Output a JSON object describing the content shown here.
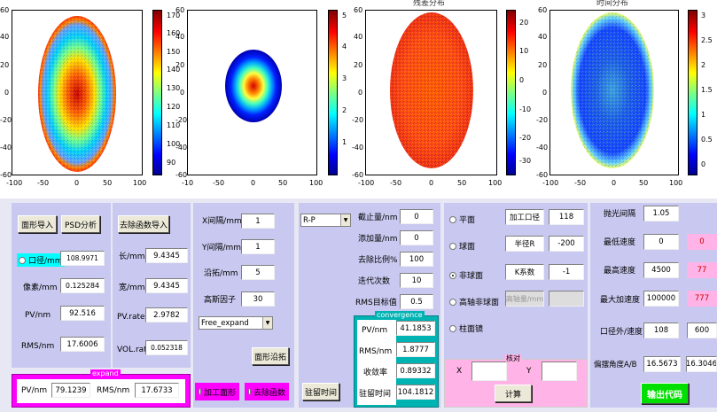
{
  "plots": {
    "titles": [
      "",
      "",
      "残差分布",
      "时间分布"
    ],
    "p1": {
      "yticks": [
        "60",
        "40",
        "20",
        "0",
        "-20",
        "-40",
        "-60"
      ],
      "xticks": [
        "-100",
        "-50",
        "0",
        "50",
        "100"
      ],
      "cbar": [
        "170",
        "160",
        "150",
        "140",
        "130",
        "120",
        "110",
        "100",
        "90"
      ]
    },
    "p2": {
      "yticks": [
        "60",
        "40",
        "20",
        "0",
        "-20",
        "-40",
        "-60"
      ],
      "xticks": [
        "-10",
        "-50",
        "0",
        "50",
        "100"
      ],
      "cbar": [
        "5",
        "4",
        "3",
        "2",
        "1"
      ]
    },
    "p3": {
      "yticks": [
        "60",
        "40",
        "20",
        "0",
        "-20",
        "-40",
        "-60"
      ],
      "xticks": [
        "-100",
        "-50",
        "0",
        "50",
        "100"
      ],
      "cbar": [
        "20",
        "10",
        "0",
        "-10",
        "-20",
        "-30"
      ]
    },
    "p4": {
      "yticks": [
        "60",
        "40",
        "20",
        "0",
        "-20",
        "-40",
        "-60"
      ],
      "xticks": [
        "-100",
        "-50",
        "0",
        "50",
        "100"
      ],
      "cbar": [
        "3",
        "2.5",
        "2",
        "1.5",
        "1",
        "0.5",
        "0"
      ]
    }
  },
  "panel1": {
    "import_btn": "面形导入",
    "psd_btn": "PSD分析",
    "aperture_label": "口径/mm",
    "aperture_value": "108.9971",
    "pixel_label": "像素/mm",
    "pixel_value": "0.125284",
    "pv_label": "PV/nm",
    "pv_value": "92.516",
    "rms_label": "RMS/nm",
    "rms_value": "17.6006"
  },
  "panel2": {
    "import_btn": "去除函数导入",
    "len_label": "长/mm",
    "len_value": "9.4345",
    "wid_label": "宽/mm",
    "wid_value": "9.4345",
    "pvrate_label": "PV.rate",
    "pvrate_value": "2.9782",
    "volrate_label": "VOL.rate",
    "volrate_value": "0.052318"
  },
  "expand": {
    "title": "expand",
    "pv_label": "PV/nm",
    "pv_value": "79.1239",
    "rms_label": "RMS/nm",
    "rms_value": "17.6733"
  },
  "panel3": {
    "x_label": "X间隔/mm",
    "x_value": "1",
    "y_label": "Y间隔/mm",
    "y_value": "1",
    "ext_label": "沿拓/mm",
    "ext_value": "5",
    "gauss_label": "高斯因子",
    "gauss_value": "30",
    "mode_select": "Free_expand",
    "expand_btn": "面形沿拓",
    "radio_surface": "加工面形",
    "radio_removal": "去除函数"
  },
  "panel4": {
    "method_select": "R-P",
    "dwell_btn": "驻留时间",
    "cut_label": "截止量/nm",
    "cut_value": "0",
    "add_label": "添加量/nm",
    "add_value": "0",
    "ratio_label": "去除比例%",
    "ratio_value": "100",
    "iter_label": "迭代次数",
    "iter_value": "10",
    "rmsgoal_label": "RMS目标值",
    "rmsgoal_value": "0.5"
  },
  "convergence": {
    "title": "convergence",
    "pv_label": "PV/nm",
    "pv_value": "41.1853",
    "rms_label": "RMS/nm",
    "rms_value": "1.8777",
    "rate_label": "收敛率",
    "rate_value": "0.89332",
    "time_label": "驻留时间",
    "time_value": "104.1812"
  },
  "panel5": {
    "r_flat": "平面",
    "r_sphere": "球面",
    "r_asphere": "非球面",
    "r_hoasphere": "高轴非球面",
    "r_cyl": "柱面镜",
    "ap_label": "加工口径",
    "ap_value": "118",
    "radius_label": "半径R",
    "radius_value": "-200",
    "k_label": "K系数",
    "k_value": "-1",
    "height_label": "高轴量/mm",
    "check_title": "核对",
    "x_label": "X",
    "y_label": "Y",
    "calc_btn": "计算"
  },
  "panel6": {
    "raster_label": "抛光间隔",
    "raster_value": "1.05",
    "minspeed_label": "最低速度",
    "minspeed_value": "0",
    "minspeed_side": "0",
    "maxspeed_label": "最高速度",
    "maxspeed_value": "4500",
    "maxspeed_side": "77",
    "maxacc_label": "最大加速度",
    "maxacc_value": "100000",
    "maxacc_side": "777",
    "outer_label": "口径外/速度",
    "outer_value": "108",
    "outer_side": "600",
    "angle_label": "偏摆角度A/B",
    "angle_a": "16.5673",
    "angle_b": "16.3046",
    "output_btn": "输出代码"
  },
  "colors": {
    "panel": "#c8c8f0",
    "magenta": "#ff00ff",
    "teal": "#00b3b3",
    "pink": "#ffb3e6",
    "green": "#00e000"
  }
}
